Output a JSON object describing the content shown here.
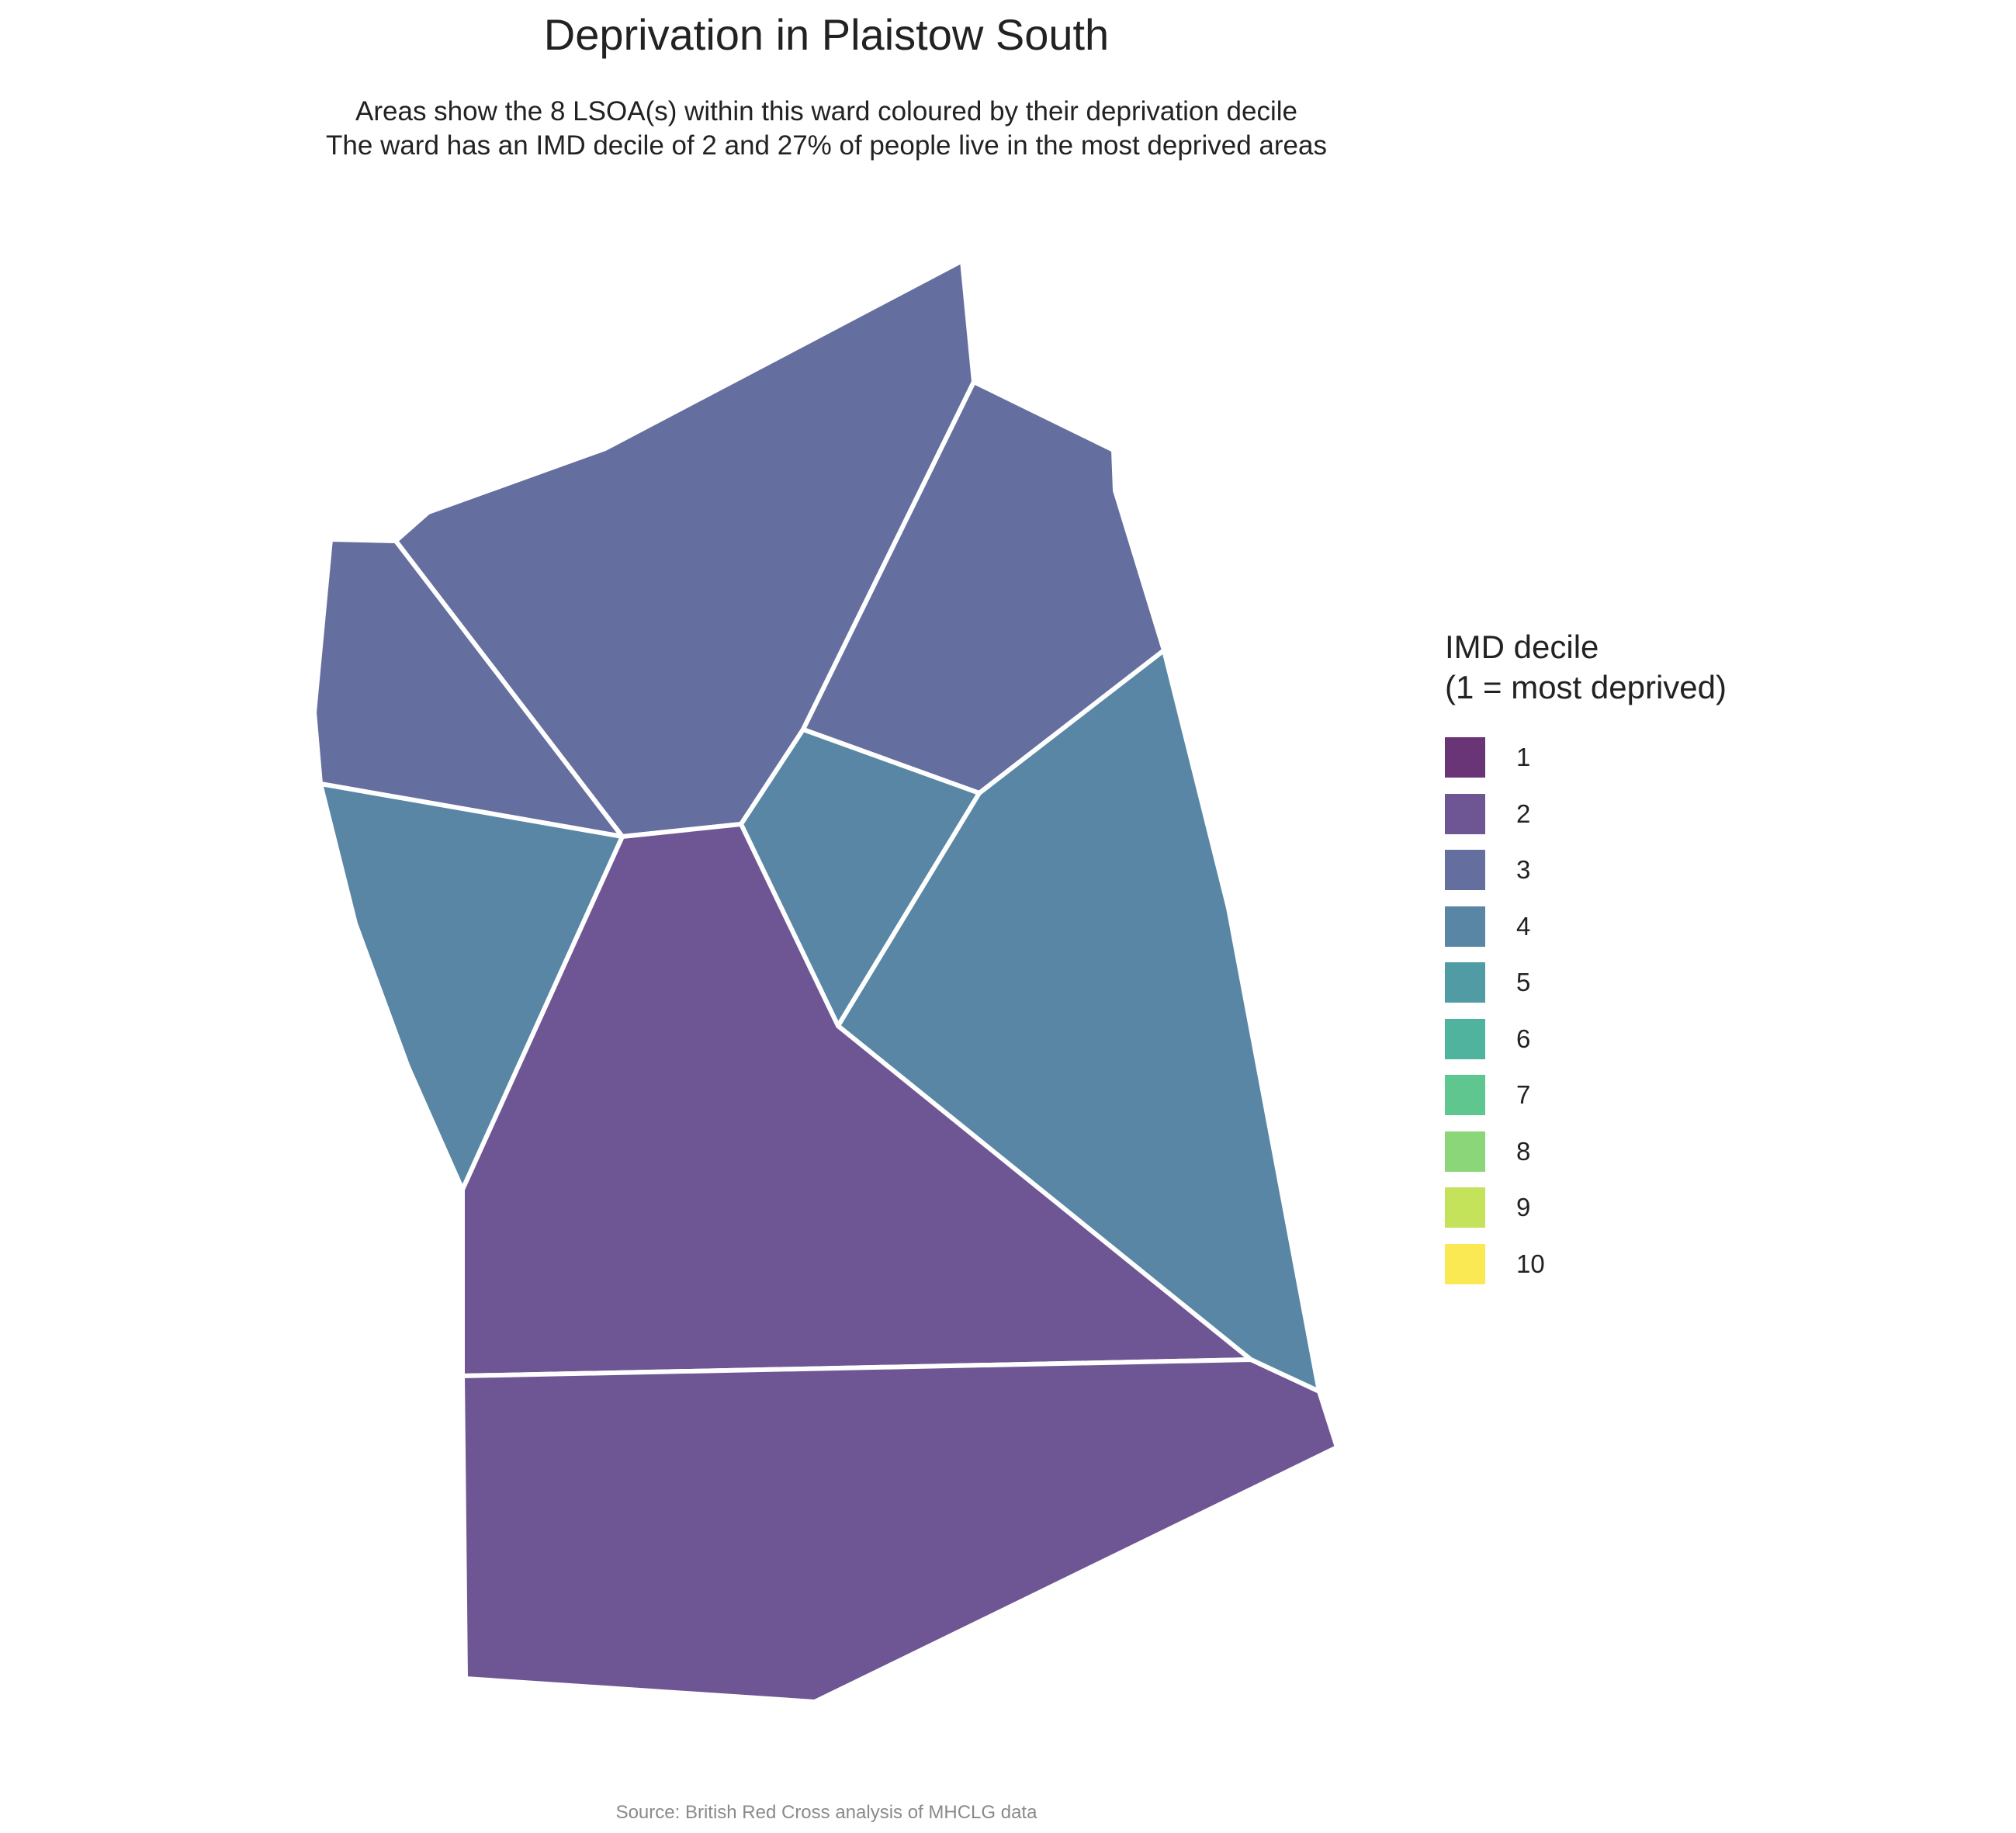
{
  "title": "Deprivation in Plaistow South",
  "subtitle": {
    "line1": "Areas show the 8 LSOA(s) within this ward coloured by their deprivation decile",
    "line2": "The ward has an IMD decile of 2 and 27% of people live in the most deprived areas"
  },
  "legend": {
    "title_line1": "IMD decile",
    "title_line2": "(1 = most deprived)",
    "items": [
      {
        "label": "1",
        "color": "#6a3576"
      },
      {
        "label": "2",
        "color": "#6e5593"
      },
      {
        "label": "3",
        "color": "#646e9f"
      },
      {
        "label": "4",
        "color": "#5886a4"
      },
      {
        "label": "5",
        "color": "#519ca4"
      },
      {
        "label": "6",
        "color": "#4fb39d"
      },
      {
        "label": "7",
        "color": "#5fc690"
      },
      {
        "label": "8",
        "color": "#8cd67a"
      },
      {
        "label": "9",
        "color": "#c4e35b"
      },
      {
        "label": "10",
        "color": "#fbe953"
      }
    ]
  },
  "areas": [
    {
      "name": "lsoa-north-central",
      "decile": 3
    },
    {
      "name": "lsoa-north-east",
      "decile": 3
    },
    {
      "name": "lsoa-north-west",
      "decile": 3
    },
    {
      "name": "lsoa-west",
      "decile": 4
    },
    {
      "name": "lsoa-centre-small",
      "decile": 4
    },
    {
      "name": "lsoa-east",
      "decile": 4
    },
    {
      "name": "lsoa-centre",
      "decile": 2
    },
    {
      "name": "lsoa-south",
      "decile": 2
    }
  ],
  "caption": "Source: British Red Cross analysis of MHCLG data"
}
